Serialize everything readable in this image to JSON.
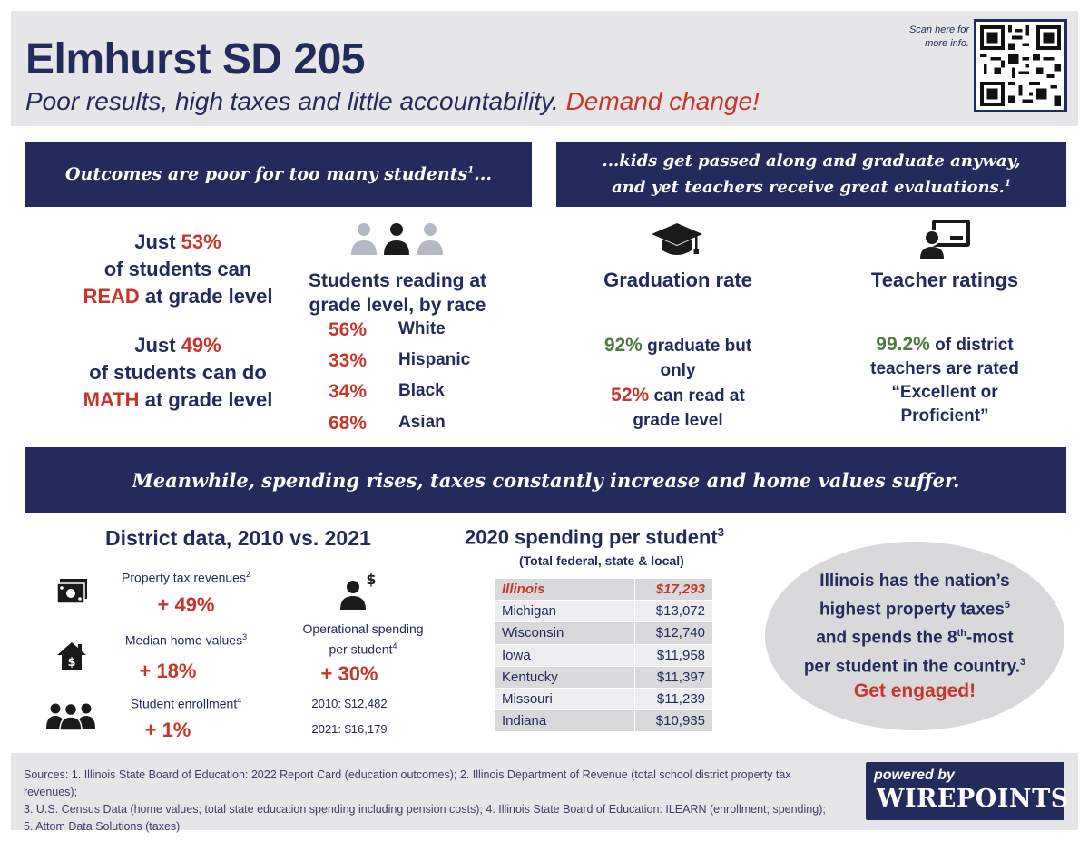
{
  "header": {
    "title": "Elmhurst SD 205",
    "subtitle_main": "Poor results, high taxes and little accountability.",
    "subtitle_call": "Demand change!",
    "scan_text": "Scan here for more info."
  },
  "banners": {
    "left": "Outcomes are poor for too many students",
    "left_sup": "1",
    "left_tail": "...",
    "right_line1": "...kids get passed along and graduate anyway,",
    "right_line2": "and yet teachers receive great evaluations.",
    "right_sup": "1",
    "middle": "Meanwhile, spending rises, taxes constantly increase and home values suffer."
  },
  "outcomes": {
    "read": {
      "prefix": "Just",
      "pct": "53%",
      "line2": "of students can",
      "subject": "READ",
      "tail": "at grade level"
    },
    "math": {
      "prefix": "Just",
      "pct": "49%",
      "line2": "of students can do",
      "subject": "MATH",
      "tail": "at grade level"
    }
  },
  "race": {
    "title": "Students reading at grade level, by race",
    "rows": [
      {
        "pct": "56%",
        "label": "White"
      },
      {
        "pct": "33%",
        "label": "Hispanic"
      },
      {
        "pct": "34%",
        "label": "Black"
      },
      {
        "pct": "68%",
        "label": "Asian"
      }
    ]
  },
  "graduation": {
    "title": "Graduation rate",
    "pct_grad": "92%",
    "text1": "graduate but only",
    "pct_read": "52%",
    "text2": "can read at grade level"
  },
  "teachers": {
    "title": "Teacher ratings",
    "pct": "99.2%",
    "text": "of district teachers are rated “Excellent or Proficient”"
  },
  "district": {
    "title": "District data, 2010 vs. 2021",
    "property": {
      "label": "Property tax revenues",
      "sup": "2",
      "value": "+ 49%"
    },
    "home": {
      "label": "Median home values",
      "sup": "3",
      "value": "+ 18%"
    },
    "enrollment": {
      "label": "Student enrollment",
      "sup": "4",
      "value": "+ 1%"
    },
    "operational": {
      "label1": "Operational spending",
      "label2": "per student",
      "sup": "4",
      "value": "+ 30%",
      "y2010": "2010: $12,482",
      "y2021": "2021: $16,179"
    }
  },
  "spending": {
    "title": "2020 spending per student",
    "title_sup": "3",
    "subtitle": "(Total federal, state & local)",
    "rows": [
      {
        "state": "Illinois",
        "amount": "$17,293"
      },
      {
        "state": "Michigan",
        "amount": "$13,072"
      },
      {
        "state": "Wisconsin",
        "amount": "$12,740"
      },
      {
        "state": "Iowa",
        "amount": "$11,958"
      },
      {
        "state": "Kentucky",
        "amount": "$11,397"
      },
      {
        "state": "Missouri",
        "amount": "$11,239"
      },
      {
        "state": "Indiana",
        "amount": "$10,935"
      }
    ]
  },
  "callout": {
    "line1": "Illinois has the nation’s",
    "line2": "highest property taxes",
    "sup5": "5",
    "line3a": "and spends the 8",
    "th": "th",
    "line3b": "-most",
    "line4": "per student in the country.",
    "sup3": "3",
    "cta": "Get engaged!"
  },
  "footer": {
    "sources_line1": "Sources: 1. Illinois State Board of Education: 2022 Report Card (education outcomes); 2. Illinois Department of Revenue (total school district property tax revenues);",
    "sources_line2": "3. U.S. Census Data (home values; total state education spending including pension costs); 4. Illinois State Board of Education: ILEARN (enrollment; spending);",
    "sources_line3": "5. Attom Data Solutions (taxes)",
    "powered_by": "powered by",
    "brand": "WIREPOINTS"
  },
  "colors": {
    "navy": "#232a5c",
    "red": "#c8352b",
    "green": "#4e7a3f",
    "panel_gray": "#e6e6e8"
  },
  "icons": [
    "qr-code-icon",
    "people-group-icon",
    "graduation-cap-icon",
    "teacher-board-icon",
    "money-icon",
    "house-dollar-icon",
    "students-group-icon",
    "person-dollar-icon"
  ]
}
